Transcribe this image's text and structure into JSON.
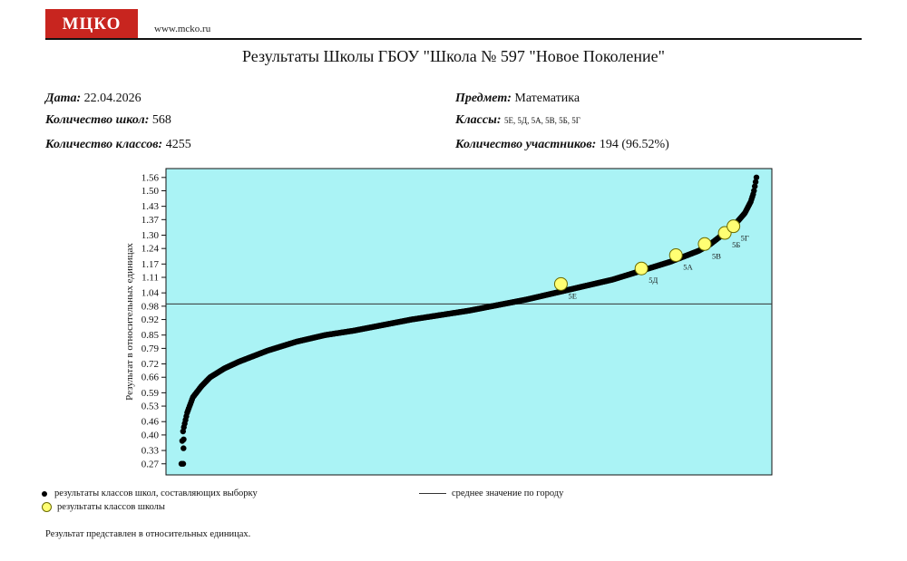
{
  "header": {
    "logo_text": "МЦКО",
    "site": "www.mcko.ru",
    "title": "Результаты Школы ГБОУ \"Школа № 597 \"Новое Поколение\""
  },
  "meta": {
    "date_label": "Дата:",
    "date_value": "22.04.2026",
    "schools_label": "Количество школ:",
    "schools_value": "568",
    "classes_count_label": "Количество классов:",
    "classes_count_value": "4255",
    "subject_label": "Предмет:",
    "subject_value": "Математика",
    "classes_label": "Классы:",
    "classes_value": "5Е, 5Д, 5А, 5В, 5Б, 5Г",
    "participants_label": "Количество участников:",
    "participants_value": "194 (96.52%)"
  },
  "legend": {
    "sample": "результаты классов школ, составляющих выборку",
    "school": "результаты классов школы",
    "mean": "среднее значение по городу"
  },
  "footnote": "Результат представлен в относительных единицах.",
  "colors": {
    "plot_bg": "#aaf3f5",
    "dots": "#000000",
    "highlight_fill": "#ffff73",
    "logo_bg": "#c8251f"
  },
  "chart_data": {
    "type": "scatter",
    "xlabel": "",
    "ylabel": "Результат в относительных единицах",
    "ylim": [
      0.22,
      1.6
    ],
    "yticks": [
      "0.27",
      "0.33",
      "0.40",
      "0.46",
      "0.53",
      "0.59",
      "0.66",
      "0.72",
      "0.79",
      "0.85",
      "0.92",
      "0.98",
      "1.04",
      "1.11",
      "1.17",
      "1.24",
      "1.30",
      "1.37",
      "1.43",
      "1.50",
      "1.56"
    ],
    "x_count": 4255,
    "city_mean": 0.99,
    "sample_curve_rank_fraction": [
      0,
      0.001,
      0.003,
      0.01,
      0.02,
      0.035,
      0.05,
      0.075,
      0.1,
      0.15,
      0.2,
      0.25,
      0.3,
      0.4,
      0.5,
      0.6,
      0.65,
      0.7,
      0.75,
      0.8,
      0.85,
      0.88,
      0.9,
      0.92,
      0.94,
      0.95,
      0.96,
      0.97,
      0.98,
      0.99,
      0.995,
      1
    ],
    "sample_curve_value": [
      0.27,
      0.36,
      0.42,
      0.5,
      0.57,
      0.62,
      0.66,
      0.7,
      0.73,
      0.78,
      0.82,
      0.85,
      0.87,
      0.92,
      0.96,
      1.01,
      1.04,
      1.07,
      1.1,
      1.14,
      1.18,
      1.21,
      1.23,
      1.26,
      1.3,
      1.32,
      1.34,
      1.37,
      1.4,
      1.45,
      1.49,
      1.56
    ],
    "school_classes": [
      {
        "label": "5Е",
        "rank_fraction": 0.66,
        "value": 1.08
      },
      {
        "label": "5Д",
        "rank_fraction": 0.8,
        "value": 1.15
      },
      {
        "label": "5А",
        "rank_fraction": 0.86,
        "value": 1.21
      },
      {
        "label": "5В",
        "rank_fraction": 0.91,
        "value": 1.26
      },
      {
        "label": "5Б",
        "rank_fraction": 0.945,
        "value": 1.31
      },
      {
        "label": "5Г",
        "rank_fraction": 0.96,
        "value": 1.34
      }
    ]
  }
}
